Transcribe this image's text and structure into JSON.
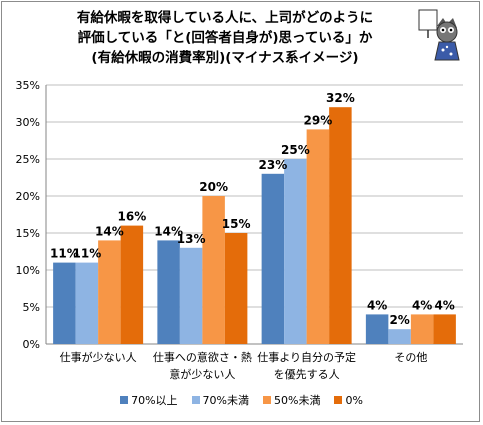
{
  "title_lines": [
    "有給休暇を取得している人に、上司がどのように",
    "評価している「と(回答者自身が)思っている」か",
    "(有給休暇の消費率別)(マイナス系イメージ)"
  ],
  "chart_data": {
    "type": "bar",
    "title": "有給休暇を取得している人に、上司がどのように評価している「と(回答者自身が)思っている」か(有給休暇の消費率別)(マイナス系イメージ)",
    "categories": [
      [
        "仕事が少ない人"
      ],
      [
        "仕事への意欲さ・熱",
        "意が少ない人"
      ],
      [
        "仕事より自分の予定",
        "を優先する人"
      ],
      [
        "その他"
      ]
    ],
    "series": [
      {
        "name": "70%以上",
        "values": [
          11,
          14,
          23,
          4
        ],
        "color": "#4f81bd"
      },
      {
        "name": "70%未満",
        "values": [
          11,
          13,
          25,
          2
        ],
        "color": "#8eb4e3"
      },
      {
        "name": "50%未満",
        "values": [
          14,
          20,
          29,
          4
        ],
        "color": "#f79646"
      },
      {
        "name": "0%",
        "values": [
          16,
          15,
          32,
          4
        ],
        "color": "#e46c0a"
      }
    ],
    "data_labels": [
      [
        "11%",
        "14%",
        "23%",
        "4%"
      ],
      [
        "11%",
        "13%",
        "25%",
        "2%"
      ],
      [
        "14%",
        "20%",
        "29%",
        "4%"
      ],
      [
        "16%",
        "15%",
        "32%",
        "4%"
      ]
    ],
    "ylim": [
      0,
      35
    ],
    "yticks": [
      0,
      5,
      10,
      15,
      20,
      25,
      30,
      35
    ],
    "ytick_labels": [
      "0%",
      "5%",
      "10%",
      "15%",
      "20%",
      "25%",
      "30%",
      "35%"
    ],
    "grid": true,
    "legend_position": "bottom",
    "xlabel": "",
    "ylabel": ""
  }
}
